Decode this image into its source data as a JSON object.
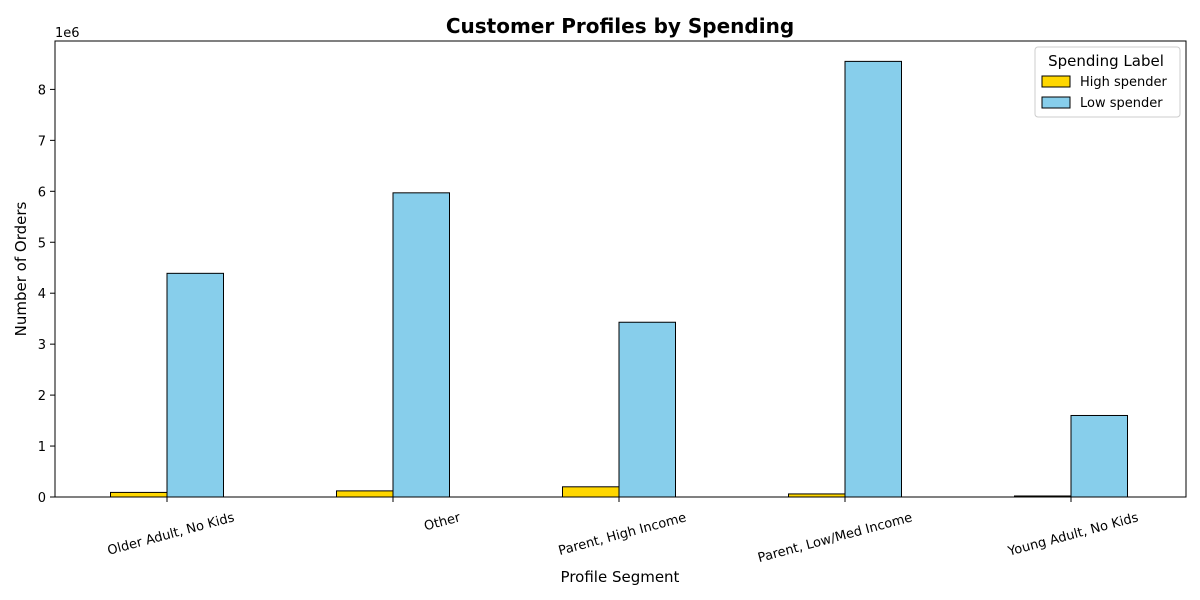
{
  "chart_data": {
    "type": "bar",
    "title": "Customer Profiles by Spending",
    "xlabel": "Profile Segment",
    "ylabel": "Number of Orders",
    "y_offset_text": "1e6",
    "categories": [
      "Older Adult, No Kids",
      "Other",
      "Parent, High Income",
      "Parent, Low/Med Income",
      "Young Adult, No Kids"
    ],
    "series": [
      {
        "name": "High spender",
        "color": "#FFD700",
        "values": [
          90000,
          120000,
          200000,
          60000,
          20000
        ]
      },
      {
        "name": "Low spender",
        "color": "#87CEEB",
        "values": [
          4390000,
          5970000,
          3430000,
          8550000,
          1600000
        ]
      }
    ],
    "ylim": [
      0,
      8950000
    ],
    "yticks": [
      0,
      1000000,
      2000000,
      3000000,
      4000000,
      5000000,
      6000000,
      7000000,
      8000000
    ],
    "ytick_labels": [
      "0",
      "1",
      "2",
      "3",
      "4",
      "5",
      "6",
      "7",
      "8"
    ],
    "legend": {
      "title": "Spending Label",
      "position": "top-right"
    },
    "grid": false
  }
}
